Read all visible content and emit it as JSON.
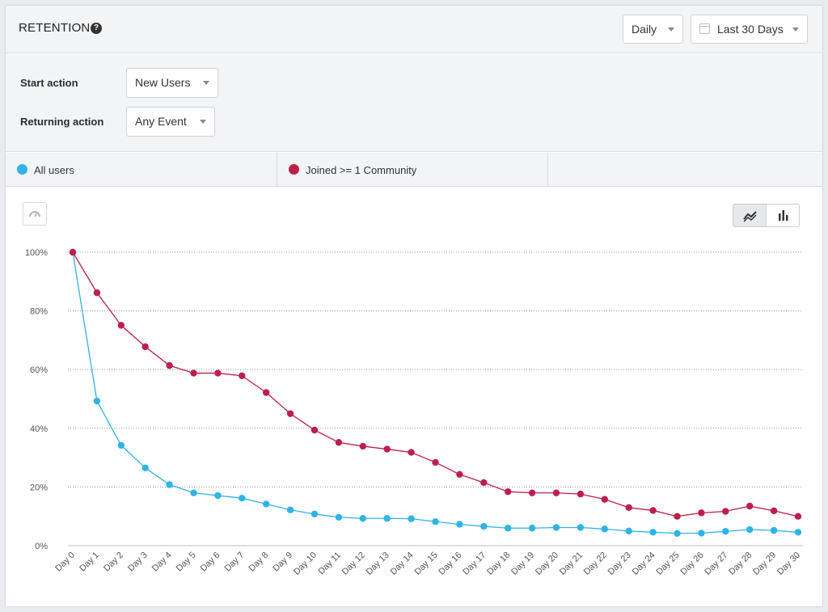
{
  "header": {
    "title": "RETENTION",
    "interval_label": "Daily",
    "range_label": "Last 30 Days"
  },
  "filters": {
    "start_label": "Start action",
    "start_value": "New Users",
    "return_label": "Returning action",
    "return_value": "Any Event"
  },
  "legend": [
    {
      "name": "All users",
      "color": "#2eb4e5"
    },
    {
      "name": "Joined >= 1 Community",
      "color": "#bf1e4b"
    }
  ],
  "colors": {
    "grid": "#9a9a9a",
    "axis": "#bdbdbd"
  },
  "chart_data": {
    "type": "line",
    "x": [
      "Day 0",
      "Day 1",
      "Day 2",
      "Day 3",
      "Day 4",
      "Day 5",
      "Day 6",
      "Day 7",
      "Day 8",
      "Day 9",
      "Day 10",
      "Day 11",
      "Day 12",
      "Day 13",
      "Day 14",
      "Day 15",
      "Day 16",
      "Day 17",
      "Day 18",
      "Day 19",
      "Day 20",
      "Day 21",
      "Day 22",
      "Day 23",
      "Day 24",
      "Day 25",
      "Day 26",
      "Day 27",
      "Day 28",
      "Day 29",
      "Day 30"
    ],
    "yticks": [
      "0%",
      "20%",
      "40%",
      "60%",
      "80%",
      "100%"
    ],
    "ylim": [
      0,
      100
    ],
    "grid": true,
    "series": [
      {
        "name": "All users",
        "color": "#2eb4e5",
        "values": [
          100,
          49.3,
          34.2,
          26.5,
          20.8,
          18,
          17.1,
          16.2,
          14.2,
          12.2,
          10.8,
          9.7,
          9.3,
          9.3,
          9.2,
          8.2,
          7.3,
          6.6,
          6,
          6,
          6.2,
          6.2,
          5.7,
          5,
          4.6,
          4.2,
          4.3,
          4.9,
          5.5,
          5.2,
          4.6
        ]
      },
      {
        "name": "Joined >= 1 Community",
        "color": "#bf1e4b",
        "values": [
          100,
          86.2,
          75.1,
          67.8,
          61.4,
          58.8,
          58.8,
          57.9,
          52.2,
          45,
          39.4,
          35.2,
          33.9,
          32.9,
          31.8,
          28.4,
          24.3,
          21.5,
          18.4,
          18,
          18,
          17.6,
          15.8,
          13,
          12,
          10,
          11.2,
          11.7,
          13.5,
          11.9,
          10
        ]
      }
    ]
  }
}
